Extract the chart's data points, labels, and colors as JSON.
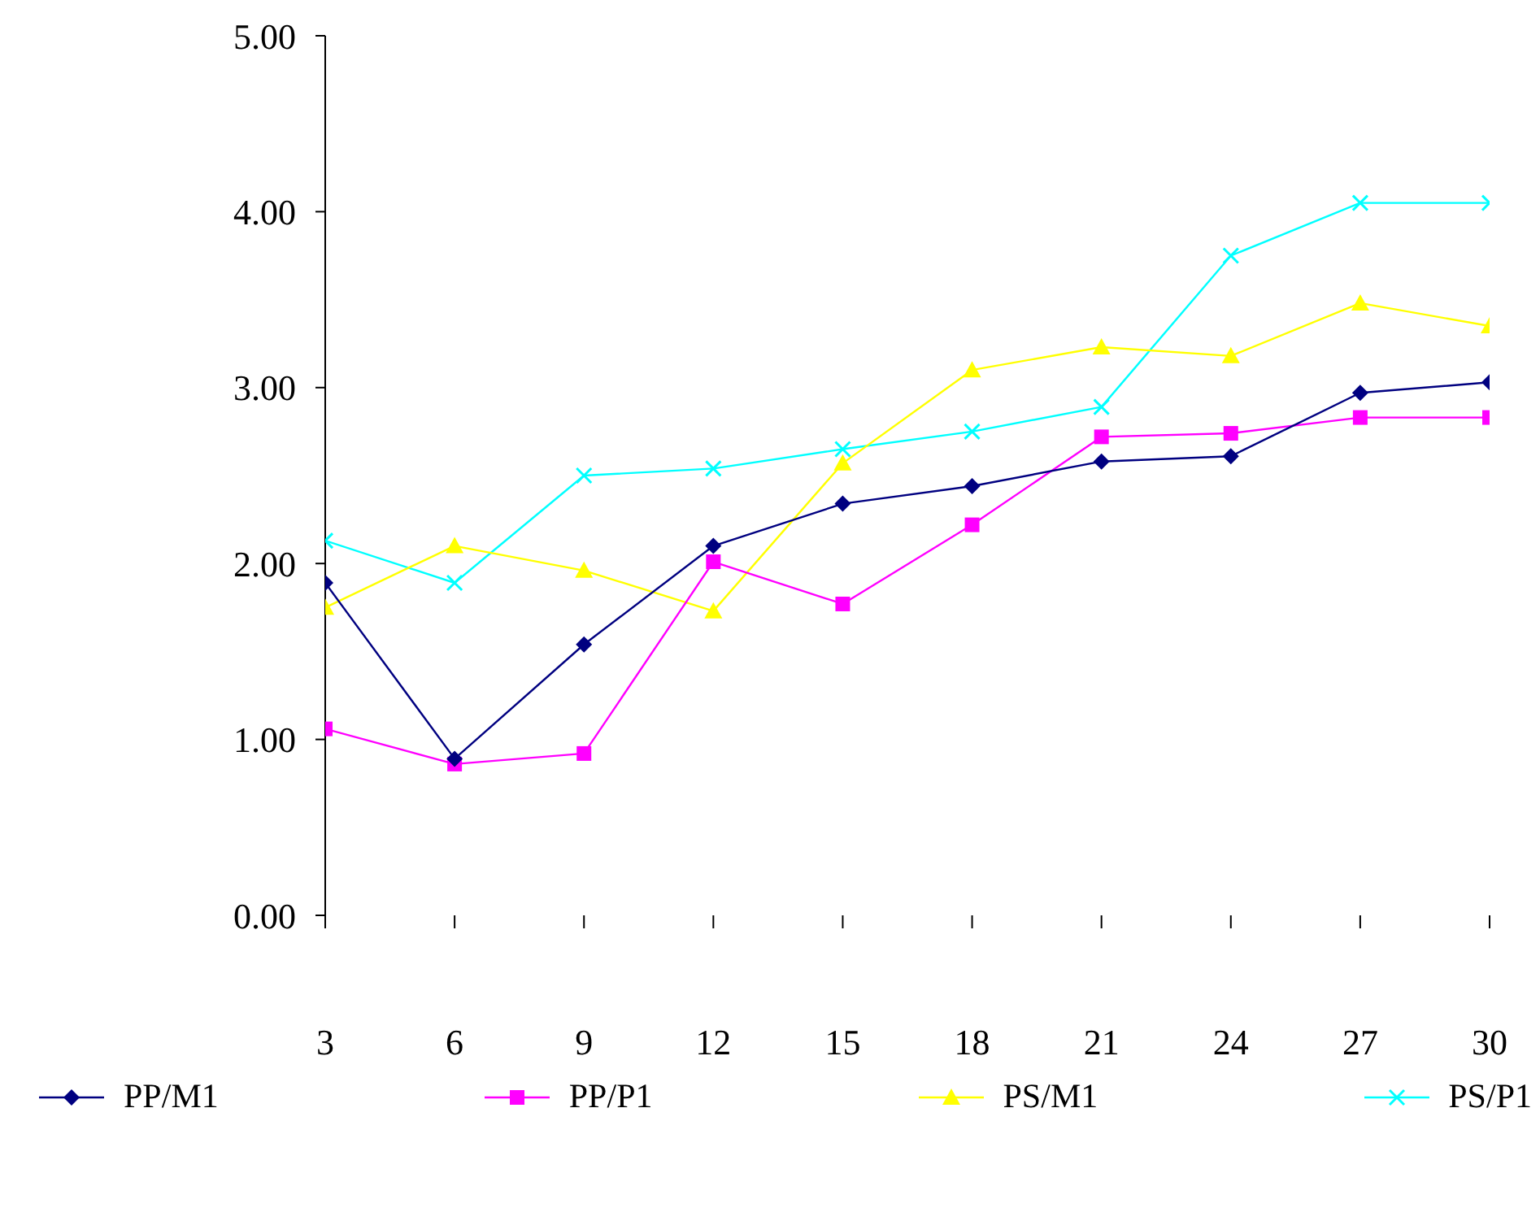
{
  "chart_data": {
    "type": "line",
    "x": [
      3,
      6,
      9,
      12,
      15,
      18,
      21,
      24,
      27,
      30
    ],
    "xlim": [
      3,
      30
    ],
    "xticks": [
      3,
      6,
      9,
      12,
      15,
      18,
      21,
      24,
      27,
      30
    ],
    "ylim": [
      0,
      5
    ],
    "yticks": [
      {
        "value": 0,
        "label": "0.00"
      },
      {
        "value": 1,
        "label": "1.00"
      },
      {
        "value": 2,
        "label": "2.00"
      },
      {
        "value": 3,
        "label": "3.00"
      },
      {
        "value": 4,
        "label": "4.00"
      },
      {
        "value": 5,
        "label": "5.00"
      }
    ],
    "grid": false,
    "legend": "bottom",
    "series": [
      {
        "name": "PP/M1",
        "color": "#000080",
        "marker": "diamond",
        "values": [
          1.89,
          0.89,
          1.54,
          2.1,
          2.34,
          2.44,
          2.58,
          2.61,
          2.97,
          3.03
        ]
      },
      {
        "name": "PP/P1",
        "color": "#ff00ff",
        "marker": "square",
        "values": [
          1.06,
          0.86,
          0.92,
          2.01,
          1.77,
          2.22,
          2.72,
          2.74,
          2.83,
          2.83
        ]
      },
      {
        "name": "PS/M1",
        "color": "#ffff00",
        "marker": "triangle",
        "values": [
          1.75,
          2.1,
          1.96,
          1.73,
          2.57,
          3.1,
          3.23,
          3.18,
          3.48,
          3.35
        ]
      },
      {
        "name": "PS/P1",
        "color": "#00ffff",
        "marker": "cross",
        "values": [
          2.13,
          1.89,
          2.5,
          2.54,
          2.65,
          2.75,
          2.89,
          3.75,
          4.05,
          4.05
        ]
      }
    ]
  }
}
